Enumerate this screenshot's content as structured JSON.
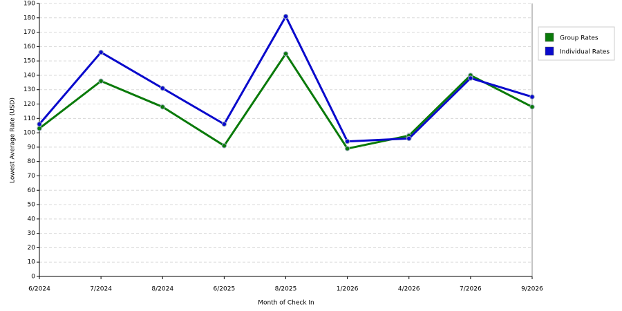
{
  "chart_data": {
    "type": "line",
    "x_label": "Month of Check In",
    "y_label": "Lowest Average Rate (USD)",
    "categories": [
      "6/2024",
      "7/2024",
      "8/2024",
      "6/2025",
      "8/2025",
      "1/2026",
      "4/2026",
      "7/2026",
      "9/2026"
    ],
    "series": [
      {
        "name": "Group Rates",
        "color": "#0a7a0a",
        "values": [
          103,
          136,
          118,
          91,
          155,
          89,
          98,
          140,
          118
        ]
      },
      {
        "name": "Individual Rates",
        "color": "#0a0acc",
        "values": [
          106,
          156,
          131,
          106,
          181,
          94,
          96,
          138,
          125
        ]
      }
    ],
    "ylim": [
      0,
      190
    ],
    "yticks": [
      0,
      10,
      20,
      30,
      40,
      50,
      60,
      70,
      80,
      90,
      100,
      110,
      120,
      130,
      140,
      150,
      160,
      170,
      180,
      190
    ],
    "grid": true,
    "legend": "right"
  }
}
